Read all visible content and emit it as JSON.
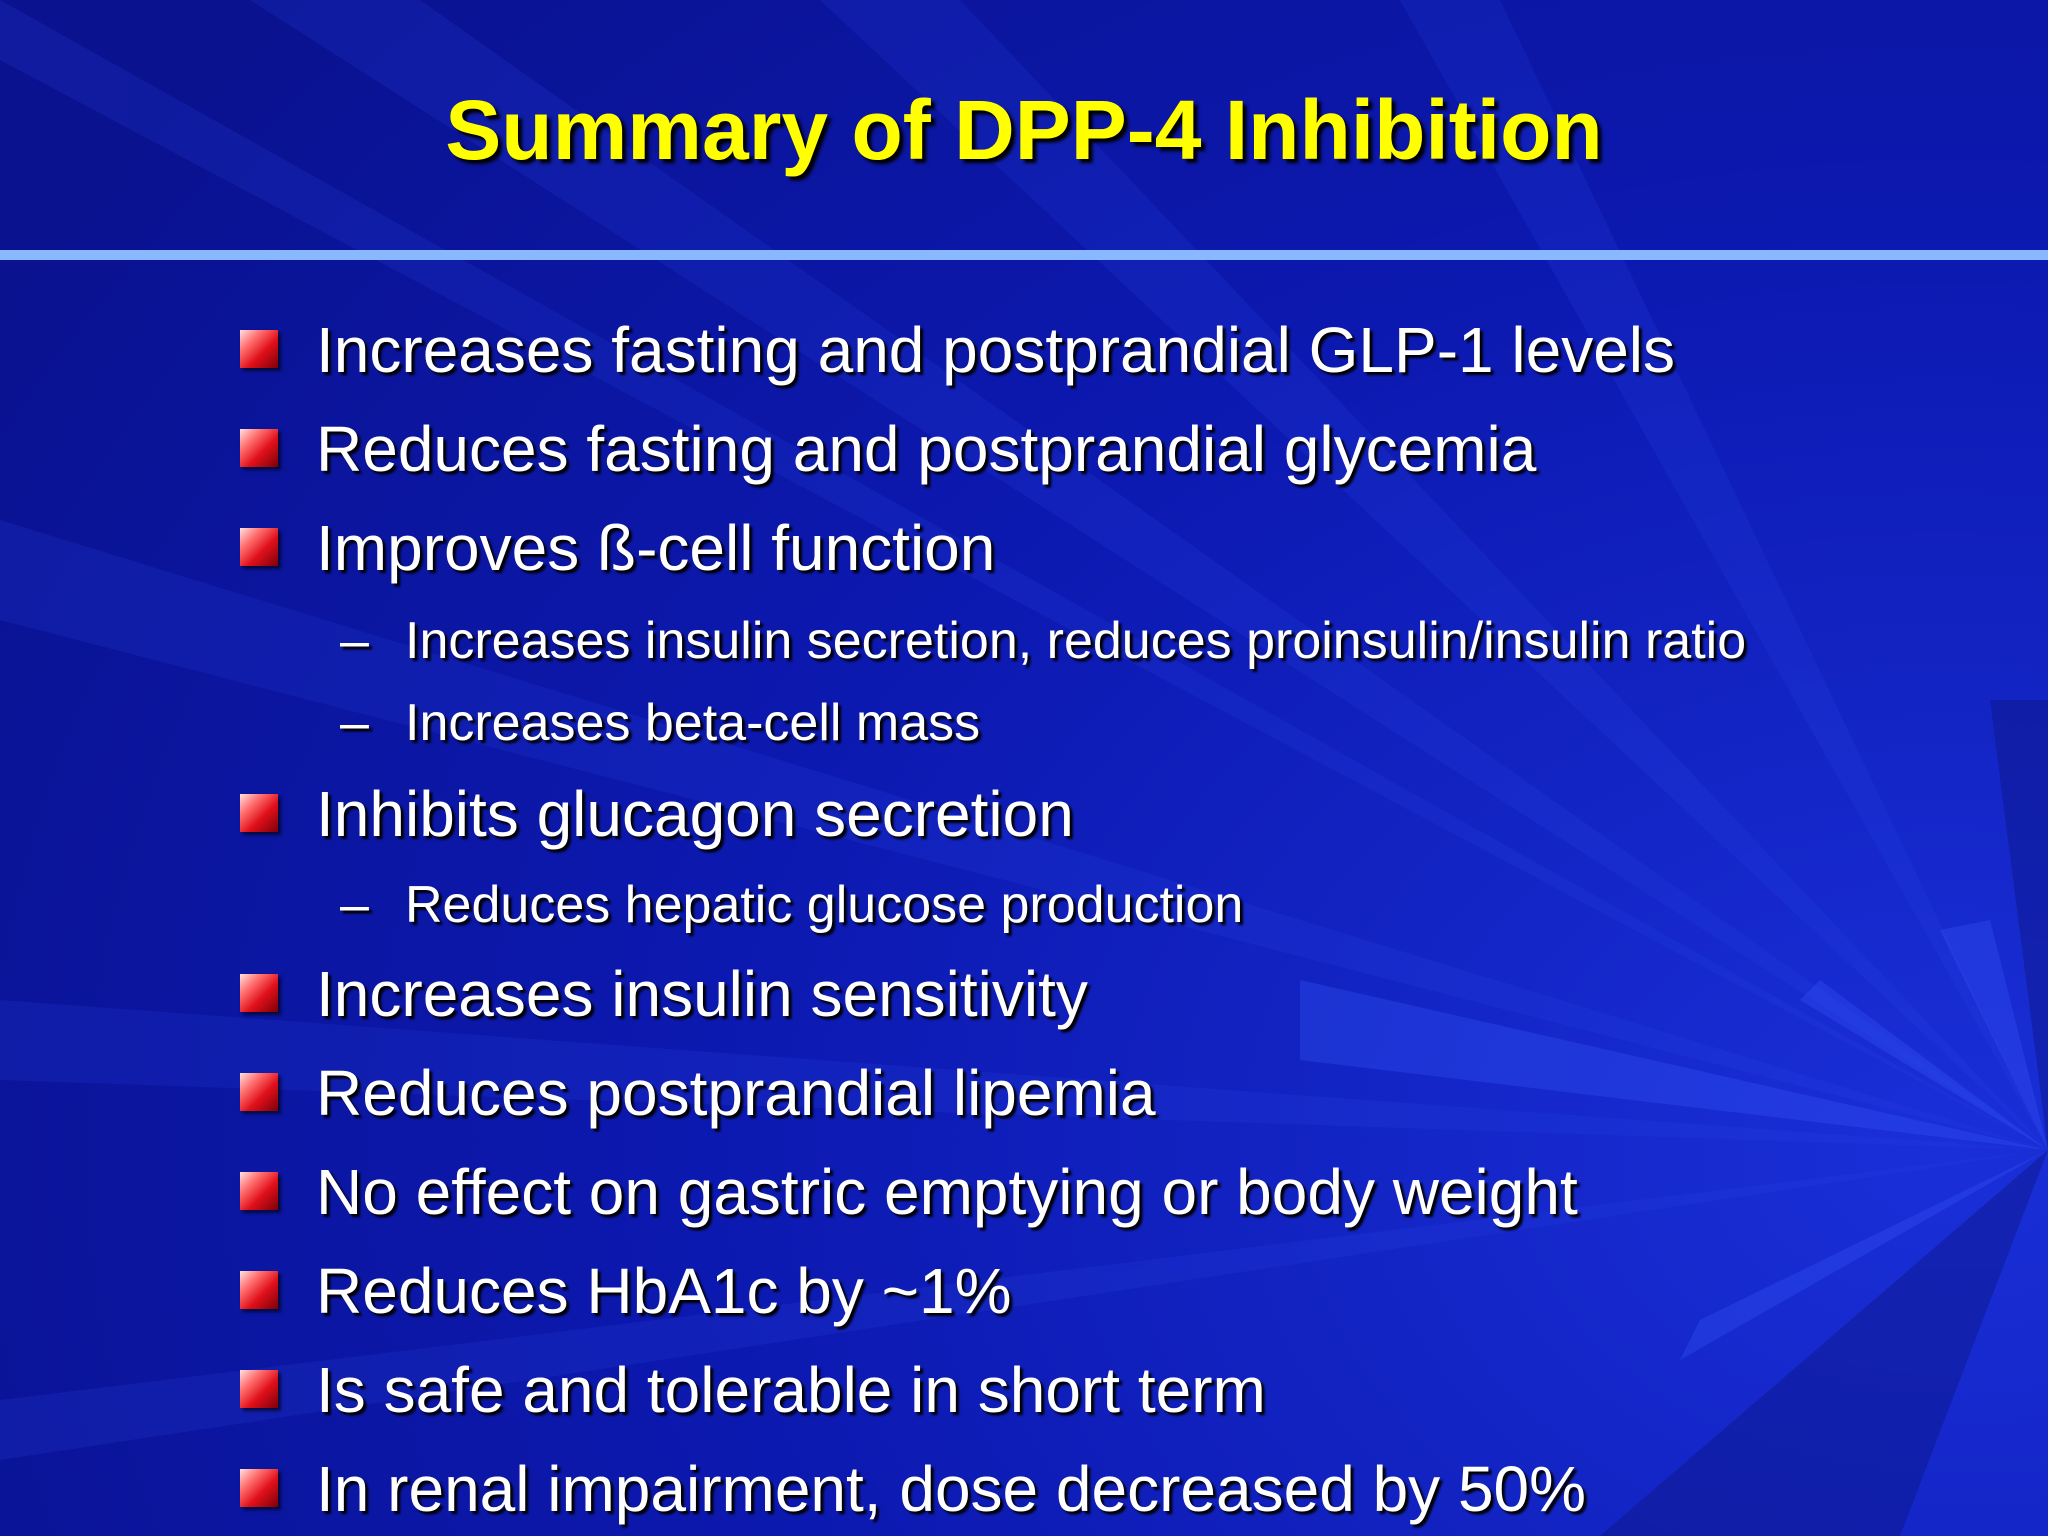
{
  "slide": {
    "title": "Summary of DPP-4 Inhibition",
    "colors": {
      "background": "#0b14a8",
      "title": "#ffff00",
      "text": "#ffffff",
      "rule": "#8ab8ff",
      "bullet": "#e0101b"
    },
    "sub_marker": "–",
    "bullets": [
      {
        "text": "Increases fasting and postprandial GLP-1 levels",
        "sub": []
      },
      {
        "text": "Reduces fasting and postprandial glycemia",
        "sub": []
      },
      {
        "text": "Improves  ß-cell function",
        "sub": [
          "Increases insulin secretion, reduces proinsulin/insulin ratio",
          "Increases beta-cell mass"
        ]
      },
      {
        "text": "Inhibits glucagon secretion",
        "sub": [
          "Reduces hepatic glucose production"
        ]
      },
      {
        "text": "Increases insulin sensitivity",
        "sub": []
      },
      {
        "text": "Reduces postprandial lipemia",
        "sub": []
      },
      {
        "text": "No effect on gastric emptying or body weight",
        "sub": []
      },
      {
        "text": "Reduces HbA1c by ~1%",
        "sub": []
      },
      {
        "text": "Is safe and tolerable in short term",
        "sub": []
      },
      {
        "text": "In renal impairment, dose decreased by 50%",
        "sub": []
      }
    ]
  }
}
